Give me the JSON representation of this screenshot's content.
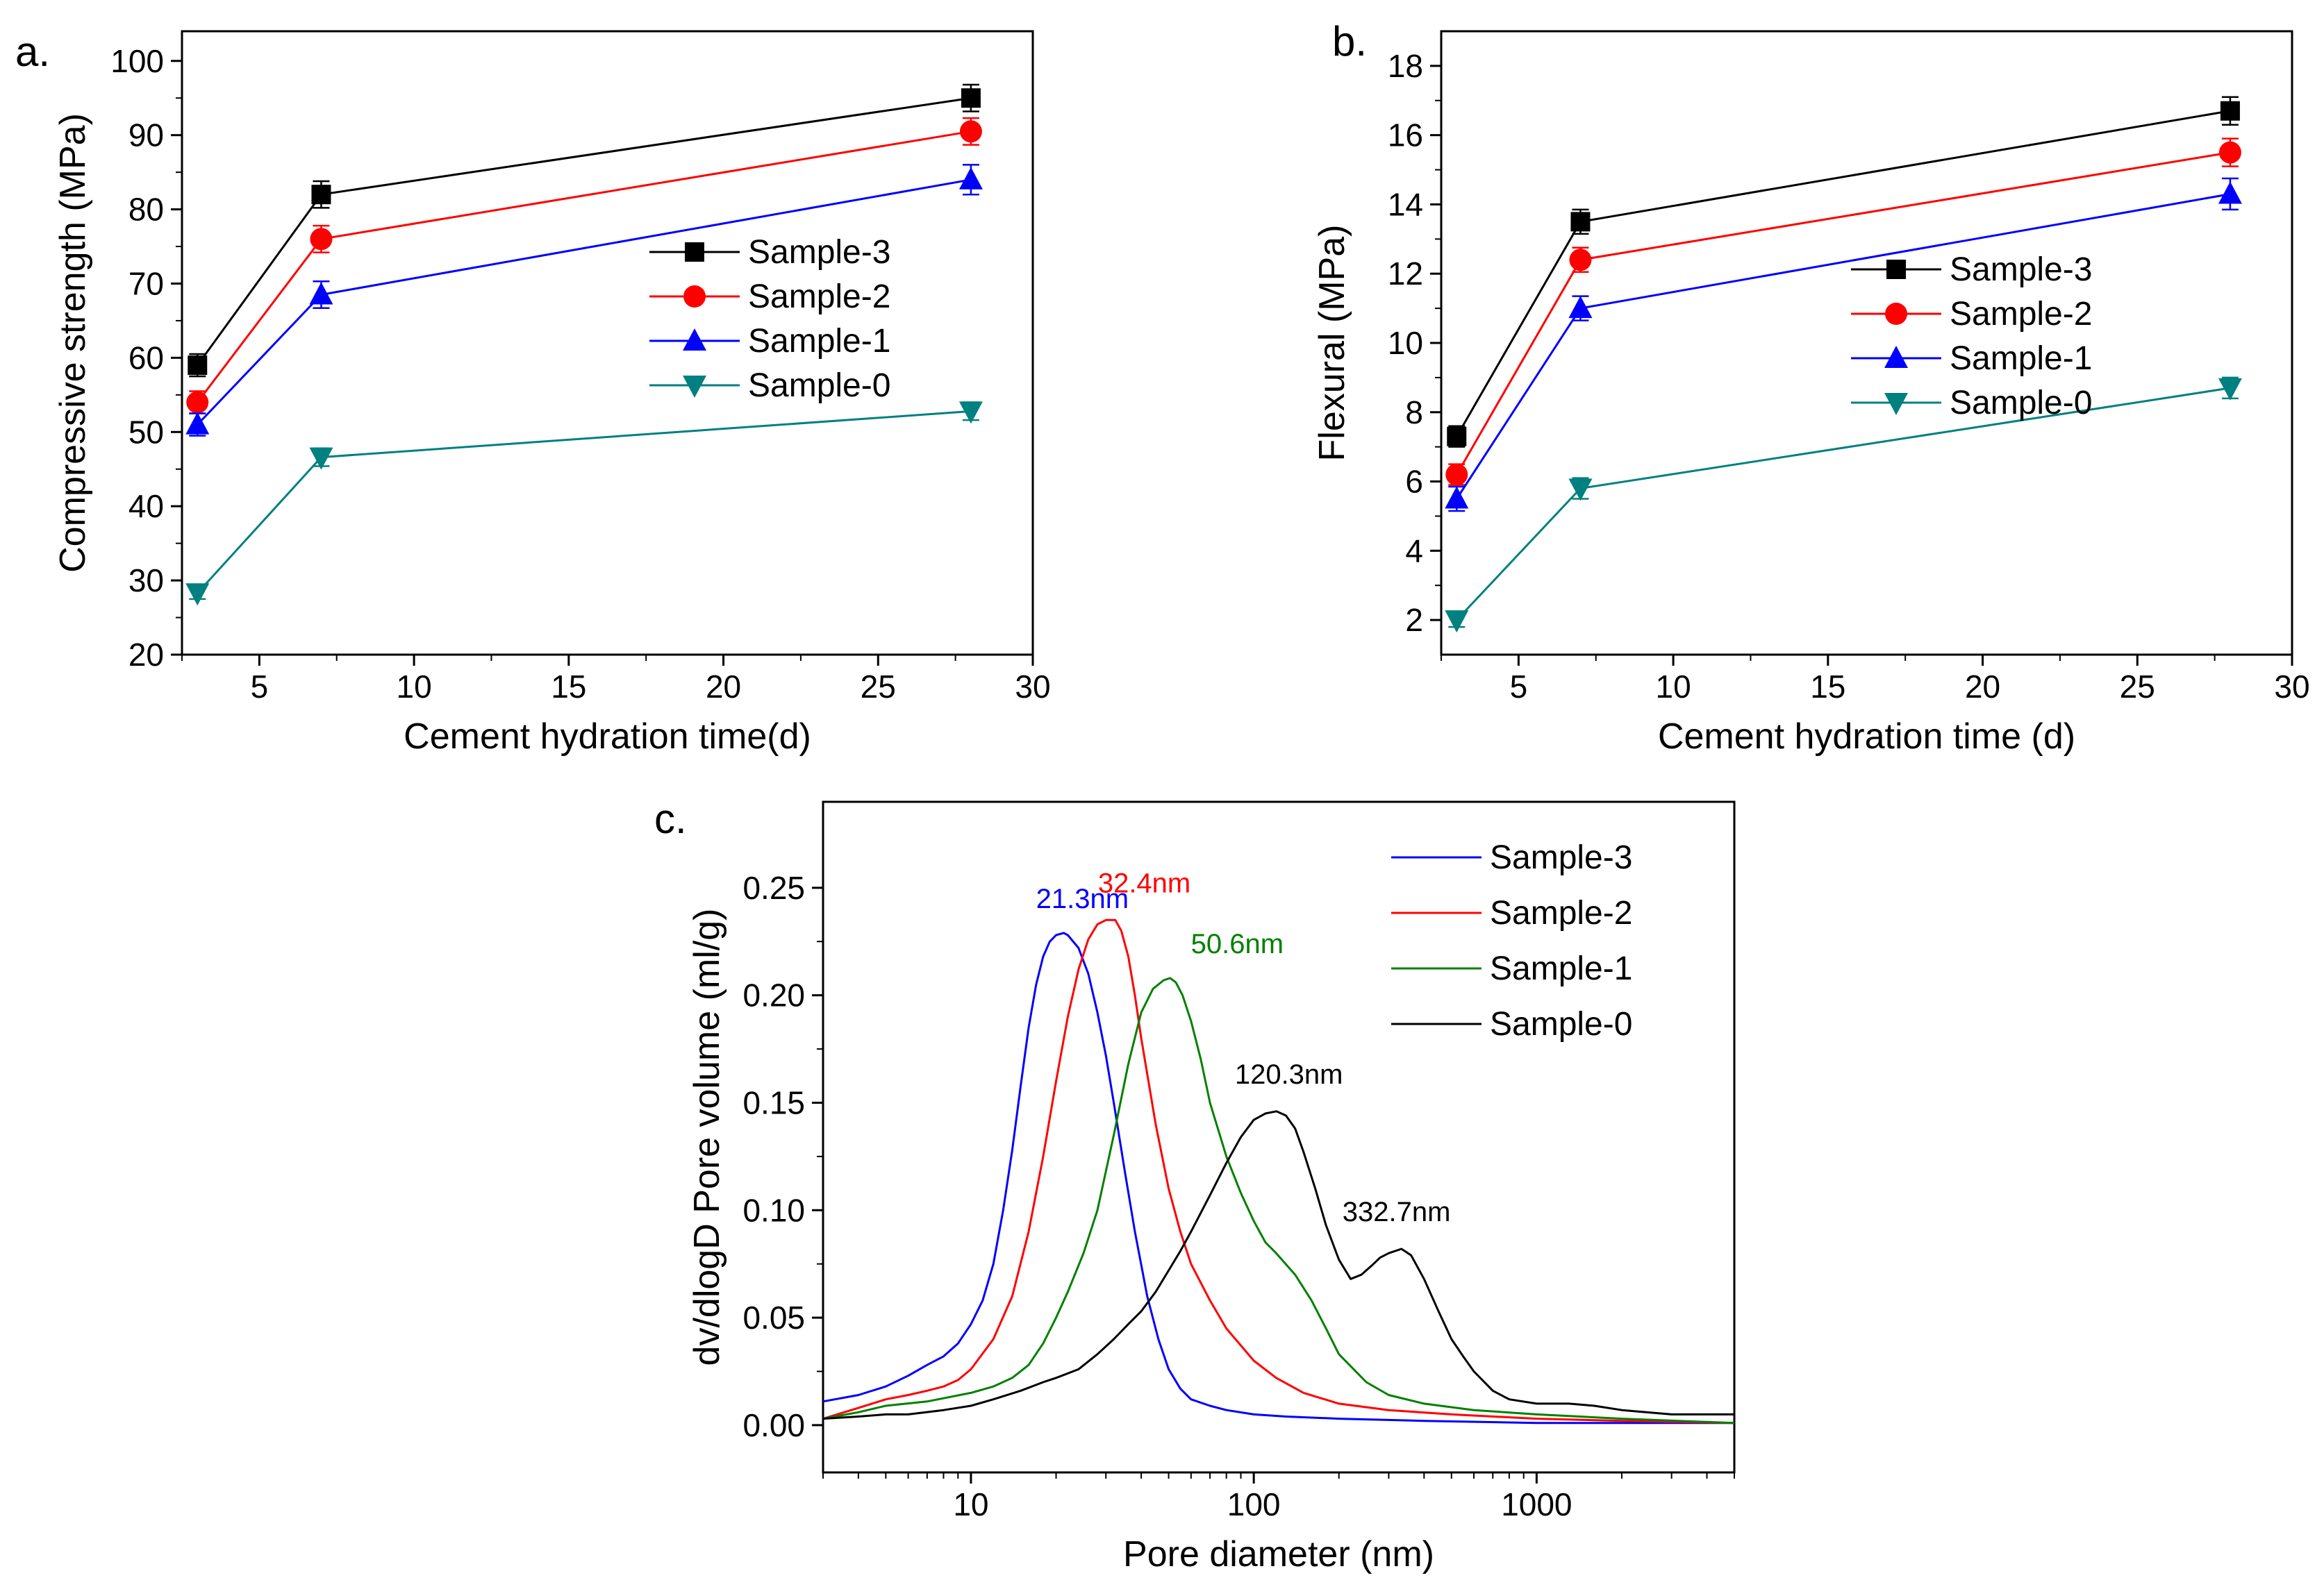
{
  "chart_data": [
    {
      "panel_label": "a.",
      "type": "line",
      "xlabel": "Cement hydration time(d)",
      "ylabel": "Compressive strength (MPa)",
      "xlim": [
        2.5,
        30
      ],
      "ylim": [
        20,
        104
      ],
      "xticks": [
        5,
        10,
        15,
        20,
        25,
        30
      ],
      "yticks": [
        20,
        30,
        40,
        50,
        60,
        70,
        80,
        90,
        100
      ],
      "x": [
        3,
        7,
        28
      ],
      "series": [
        {
          "name": "Sample-3",
          "color": "#000000",
          "marker": "square",
          "values": [
            59,
            82,
            95
          ],
          "errors": [
            1.5,
            1.8,
            1.8
          ]
        },
        {
          "name": "Sample-2",
          "color": "#ff0000",
          "marker": "circle",
          "values": [
            54,
            76,
            90.5
          ],
          "errors": [
            1.5,
            1.8,
            1.8
          ]
        },
        {
          "name": "Sample-1",
          "color": "#0000ff",
          "marker": "triangle-up",
          "values": [
            51,
            68.5,
            84
          ],
          "errors": [
            1.5,
            1.8,
            2.0
          ]
        },
        {
          "name": "Sample-0",
          "color": "#008080",
          "marker": "triangle-down",
          "values": [
            28.3,
            46.6,
            52.8
          ],
          "errors": [
            0.8,
            1.2,
            1.2
          ]
        }
      ],
      "legend_position": "center-right"
    },
    {
      "panel_label": "b.",
      "type": "line",
      "xlabel": "Cement hydration time (d)",
      "ylabel": "Flexural (MPa)",
      "xlim": [
        2.5,
        30
      ],
      "ylim": [
        1.0,
        19.0
      ],
      "xticks": [
        5,
        10,
        15,
        20,
        25,
        30
      ],
      "yticks": [
        2,
        4,
        6,
        8,
        10,
        12,
        14,
        16,
        18
      ],
      "x": [
        3,
        7,
        28
      ],
      "series": [
        {
          "name": "Sample-3",
          "color": "#000000",
          "marker": "square",
          "values": [
            7.3,
            13.5,
            16.7
          ],
          "errors": [
            0.3,
            0.35,
            0.4
          ]
        },
        {
          "name": "Sample-2",
          "color": "#ff0000",
          "marker": "circle",
          "values": [
            6.2,
            12.4,
            15.5
          ],
          "errors": [
            0.3,
            0.35,
            0.4
          ]
        },
        {
          "name": "Sample-1",
          "color": "#0000ff",
          "marker": "triangle-up",
          "values": [
            5.5,
            11.0,
            14.3
          ],
          "errors": [
            0.35,
            0.35,
            0.45
          ]
        },
        {
          "name": "Sample-0",
          "color": "#008080",
          "marker": "triangle-down",
          "values": [
            2.0,
            5.8,
            8.7
          ],
          "errors": [
            0.2,
            0.3,
            0.3
          ]
        }
      ],
      "legend_position": "center-right"
    },
    {
      "panel_label": "c.",
      "type": "line",
      "xscale": "log",
      "xlabel": "Pore diameter (nm)",
      "ylabel": "dv/dlogD Pore volume (ml/g)",
      "xlim": [
        3,
        5000
      ],
      "ylim": [
        -0.022,
        0.29
      ],
      "xticks": [
        10,
        100,
        1000
      ],
      "xtick_labels": [
        "10",
        "100",
        "1000"
      ],
      "yticks": [
        0.0,
        0.05,
        0.1,
        0.15,
        0.2,
        0.25
      ],
      "ytick_labels": [
        "0.00",
        "0.05",
        "0.10",
        "0.15",
        "0.20",
        "0.25"
      ],
      "series": [
        {
          "name": "Sample-3",
          "color": "#0000ff",
          "x": [
            3,
            4,
            5,
            6,
            7,
            8,
            9,
            10,
            11,
            12,
            13,
            14,
            15,
            16,
            17,
            18,
            19,
            20,
            21.3,
            22,
            24,
            26,
            28,
            30,
            32,
            35,
            38,
            42,
            46,
            50,
            55,
            60,
            70,
            80,
            100,
            130,
            200,
            400,
            1000,
            5000
          ],
          "y": [
            0.011,
            0.014,
            0.018,
            0.023,
            0.028,
            0.032,
            0.038,
            0.047,
            0.058,
            0.075,
            0.1,
            0.128,
            0.158,
            0.185,
            0.205,
            0.218,
            0.225,
            0.228,
            0.229,
            0.228,
            0.222,
            0.21,
            0.192,
            0.172,
            0.15,
            0.118,
            0.09,
            0.06,
            0.04,
            0.026,
            0.017,
            0.012,
            0.009,
            0.007,
            0.005,
            0.004,
            0.003,
            0.002,
            0.001,
            0.001
          ]
        },
        {
          "name": "Sample-2",
          "color": "#ff0000",
          "x": [
            3,
            4,
            5,
            6,
            7,
            8,
            9,
            10,
            12,
            14,
            16,
            18,
            20,
            22,
            24,
            26,
            28,
            30,
            32.4,
            34,
            36,
            38,
            40,
            45,
            50,
            55,
            60,
            70,
            80,
            100,
            120,
            150,
            200,
            300,
            500,
            1000,
            2000,
            5000
          ],
          "y": [
            0.003,
            0.008,
            0.012,
            0.014,
            0.016,
            0.018,
            0.021,
            0.026,
            0.04,
            0.06,
            0.09,
            0.125,
            0.16,
            0.19,
            0.212,
            0.226,
            0.233,
            0.235,
            0.235,
            0.23,
            0.218,
            0.2,
            0.18,
            0.14,
            0.11,
            0.09,
            0.075,
            0.058,
            0.045,
            0.03,
            0.022,
            0.015,
            0.01,
            0.007,
            0.005,
            0.003,
            0.002,
            0.001
          ]
        },
        {
          "name": "Sample-1",
          "color": "#008000",
          "x": [
            3,
            4,
            5,
            7,
            10,
            12,
            14,
            16,
            18,
            20,
            22,
            25,
            28,
            32,
            36,
            40,
            44,
            48,
            50.6,
            53,
            56,
            60,
            65,
            70,
            80,
            90,
            100,
            110,
            120,
            140,
            160,
            180,
            200,
            250,
            300,
            400,
            600,
            1000,
            2000,
            5000
          ],
          "y": [
            0.003,
            0.006,
            0.009,
            0.011,
            0.015,
            0.018,
            0.022,
            0.028,
            0.038,
            0.05,
            0.062,
            0.08,
            0.1,
            0.135,
            0.168,
            0.192,
            0.203,
            0.207,
            0.208,
            0.206,
            0.2,
            0.188,
            0.17,
            0.15,
            0.125,
            0.108,
            0.095,
            0.085,
            0.08,
            0.07,
            0.058,
            0.045,
            0.033,
            0.02,
            0.014,
            0.01,
            0.007,
            0.005,
            0.003,
            0.001
          ]
        },
        {
          "name": "Sample-0",
          "color": "#000000",
          "x": [
            3,
            4,
            5,
            6,
            8,
            10,
            12,
            15,
            18,
            20,
            24,
            28,
            32,
            36,
            40,
            45,
            50,
            55,
            60,
            70,
            80,
            90,
            100,
            110,
            120.3,
            130,
            140,
            150,
            165,
            180,
            200,
            220,
            240,
            260,
            280,
            300,
            332.7,
            360,
            400,
            450,
            500,
            550,
            600,
            700,
            800,
            1000,
            1300,
            1600,
            2000,
            3000,
            5000
          ],
          "y": [
            0.003,
            0.004,
            0.005,
            0.005,
            0.007,
            0.009,
            0.012,
            0.016,
            0.02,
            0.022,
            0.026,
            0.033,
            0.04,
            0.047,
            0.053,
            0.062,
            0.072,
            0.081,
            0.09,
            0.107,
            0.122,
            0.134,
            0.142,
            0.145,
            0.146,
            0.144,
            0.138,
            0.127,
            0.11,
            0.093,
            0.077,
            0.068,
            0.07,
            0.074,
            0.078,
            0.08,
            0.082,
            0.079,
            0.068,
            0.053,
            0.04,
            0.032,
            0.025,
            0.016,
            0.012,
            0.01,
            0.01,
            0.009,
            0.007,
            0.005,
            0.005
          ]
        }
      ],
      "annotations": [
        {
          "text": "21.3nm",
          "color": "#0000ff",
          "x": 21.3,
          "y": 0.229
        },
        {
          "text": "32.4nm",
          "color": "#ff0000",
          "x": 32.4,
          "y": 0.235
        },
        {
          "text": "50.6nm",
          "color": "#008000",
          "x": 50.6,
          "y": 0.208
        },
        {
          "text": "120.3nm",
          "color": "#000000",
          "x": 120.3,
          "y": 0.146
        },
        {
          "text": "332.7nm",
          "color": "#000000",
          "x": 332.7,
          "y": 0.082
        }
      ],
      "legend_position": "top-right"
    }
  ]
}
